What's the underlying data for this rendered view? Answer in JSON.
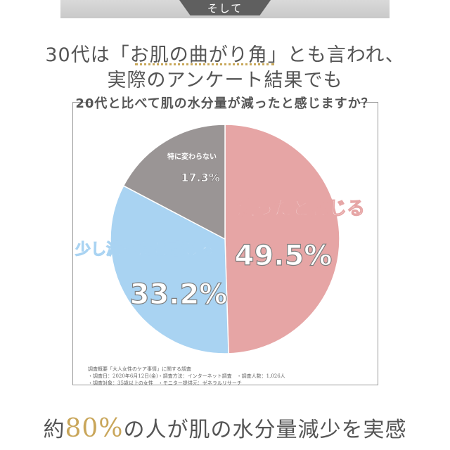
{
  "banner": {
    "tab_label": "そして"
  },
  "headline": {
    "line1": "30代は「お肌の曲がり角」とも言われ、",
    "line2": "実際のアンケート結果でも"
  },
  "chart_data": {
    "type": "pie",
    "title": "20代と比べて肌の水分量が減ったと感じますか？",
    "slices": [
      {
        "label": "減ったと感じる",
        "value": 49.5,
        "display": "49.5%",
        "color": "#e6a5a5"
      },
      {
        "label": "少し減ったと感じる",
        "value": 33.2,
        "display": "33.2%",
        "color": "#a9d3f2"
      },
      {
        "label": "特に変わらない",
        "value": 17.3,
        "display": "17.3%",
        "color": "#9a9595"
      }
    ],
    "start": "12 o'clock, clockwise"
  },
  "footnote": {
    "line1": "調査概要「大人女性のケア事情」に関する調査",
    "line2": "・調査日：2020年6月12日(金)・調査方法：インターネット調査　・調査人数：1,026人",
    "line3": "・調査対象：35歳以上の女性　・モニター提供元：ゼネラルリサーチ"
  },
  "conclusion": {
    "prefix": "約",
    "percent": "80%",
    "suffix": "の人が肌の水分量減少を実感"
  }
}
